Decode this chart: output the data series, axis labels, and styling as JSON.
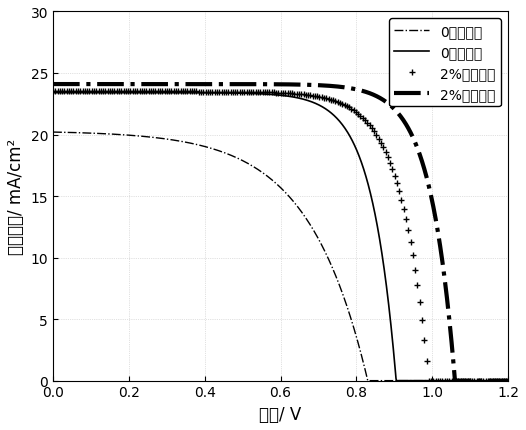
{
  "xlabel": "电压/ V",
  "ylabel": "电流密度/ mA/cm²",
  "xlim": [
    0,
    1.2
  ],
  "ylim": [
    0,
    30
  ],
  "xticks": [
    0,
    0.2,
    0.4,
    0.6,
    0.8,
    1.0,
    1.2
  ],
  "yticks": [
    0,
    5,
    10,
    15,
    20,
    25,
    30
  ],
  "legend_entries": [
    "0掺杂反扫",
    "0掺杂正扫",
    "2%掺杂反扫",
    "2%掺杂正扫"
  ],
  "background_color": "#ffffff",
  "font_size": 12,
  "legend_font_size": 10,
  "curves": [
    {
      "label": "0掺杂反扫",
      "Jsc": 20.2,
      "Voc": 0.83,
      "n": 6.0,
      "linestyle": "-.",
      "linewidth": 1.0,
      "marker": null,
      "markersize": 0,
      "markevery": 1
    },
    {
      "label": "0掺杂正扫",
      "Jsc": 23.4,
      "Voc": 0.905,
      "n": 2.5,
      "linestyle": "-",
      "linewidth": 1.2,
      "marker": null,
      "markersize": 0,
      "markevery": 1
    },
    {
      "label": "2%掺杂反扫",
      "Jsc": 23.5,
      "Voc": 0.99,
      "n": 2.8,
      "linestyle": "None",
      "linewidth": 0,
      "marker": "+",
      "markersize": 4,
      "markevery": 5
    },
    {
      "label": "2%掺杂正扫",
      "Jsc": 24.1,
      "Voc": 1.06,
      "n": 2.5,
      "linestyle": "-.",
      "linewidth": 3.0,
      "marker": null,
      "markersize": 0,
      "markevery": 1
    }
  ]
}
